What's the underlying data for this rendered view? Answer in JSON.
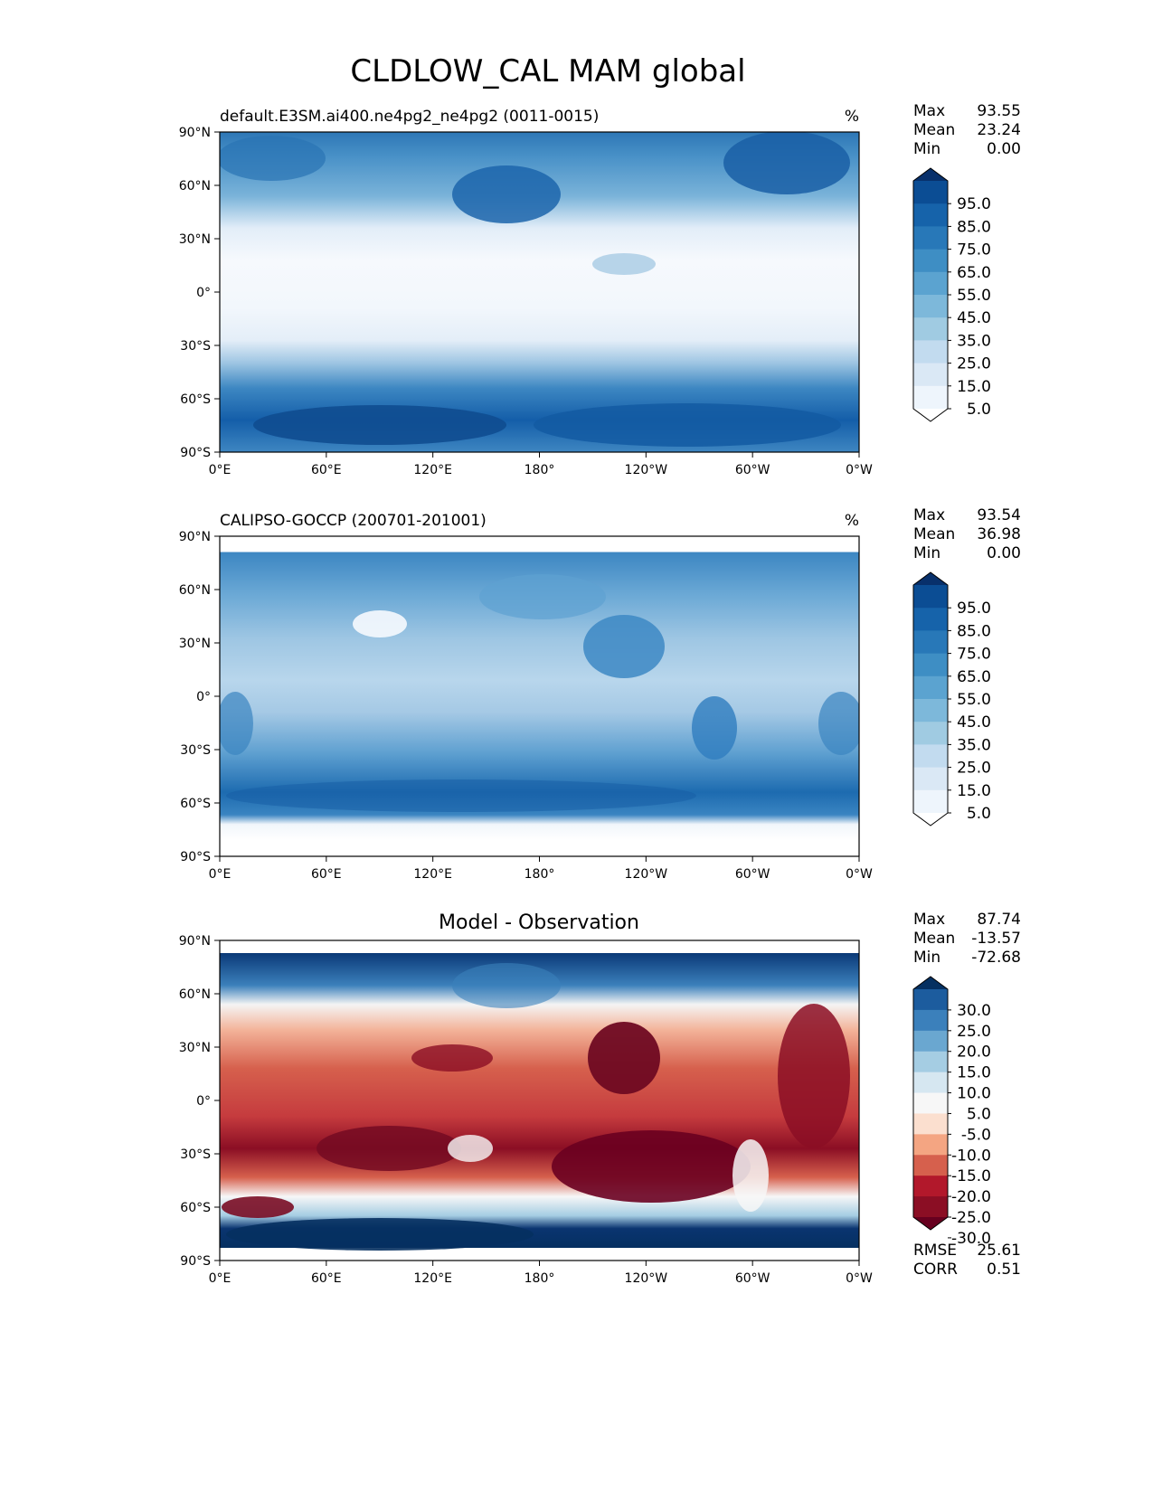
{
  "figure": {
    "title": "CLDLOW_CAL MAM global"
  },
  "axes_labels": {
    "lat": [
      "90°N",
      "60°N",
      "30°N",
      "0°",
      "30°S",
      "60°S",
      "90°S"
    ],
    "lon": [
      "0°E",
      "60°E",
      "120°E",
      "180°",
      "120°W",
      "60°W",
      "0°W"
    ]
  },
  "chart_data": [
    {
      "type": "heatmap",
      "title": "default.E3SM.ai400.ne4pg2_ne4pg2 (0011-0015)",
      "units": "%",
      "stats": [
        {
          "label": "Max",
          "value": "93.55"
        },
        {
          "label": "Mean",
          "value": "23.24"
        },
        {
          "label": "Min",
          "value": "0.00"
        }
      ],
      "colorbar": {
        "tick_labels": [
          "95.0",
          "85.0",
          "75.0",
          "65.0",
          "55.0",
          "45.0",
          "35.0",
          "25.0",
          "15.0",
          "5.0"
        ],
        "colors": [
          "#08306b",
          "#0b4d94",
          "#1663aa",
          "#2878b8",
          "#3e8ec4",
          "#5ba3d0",
          "#7db8da",
          "#a0cbe2",
          "#c2dbef",
          "#dae8f5",
          "#eef5fc",
          "#ffffff"
        ]
      },
      "xlim": [
        0,
        360
      ],
      "ylim": [
        -90,
        90
      ]
    },
    {
      "type": "heatmap",
      "title": "CALIPSO-GOCCP (200701-201001)",
      "units": "%",
      "stats": [
        {
          "label": "Max",
          "value": "93.54"
        },
        {
          "label": "Mean",
          "value": "36.98"
        },
        {
          "label": "Min",
          "value": "0.00"
        }
      ],
      "colorbar": {
        "tick_labels": [
          "95.0",
          "85.0",
          "75.0",
          "65.0",
          "55.0",
          "45.0",
          "35.0",
          "25.0",
          "15.0",
          "5.0"
        ],
        "colors": [
          "#08306b",
          "#0b4d94",
          "#1663aa",
          "#2878b8",
          "#3e8ec4",
          "#5ba3d0",
          "#7db8da",
          "#a0cbe2",
          "#c2dbef",
          "#dae8f5",
          "#eef5fc",
          "#ffffff"
        ]
      },
      "xlim": [
        0,
        360
      ],
      "ylim": [
        -90,
        90
      ]
    },
    {
      "type": "heatmap",
      "title": "Model - Observation",
      "units": "",
      "stats": [
        {
          "label": "Max",
          "value": "87.74"
        },
        {
          "label": "Mean",
          "value": "-13.57"
        },
        {
          "label": "Min",
          "value": "-72.68"
        }
      ],
      "colorbar": {
        "tick_labels": [
          "30.0",
          "25.0",
          "20.0",
          "15.0",
          "10.0",
          "5.0",
          "-5.0",
          "-10.0",
          "-15.0",
          "-20.0",
          "-25.0",
          "-30.0"
        ],
        "colors": [
          "#053061",
          "#1c5c9e",
          "#3b80bb",
          "#6aa7d0",
          "#a5cde3",
          "#d6e7f1",
          "#f7f7f7",
          "#fbdfcf",
          "#f4a582",
          "#d6604d",
          "#b2182b",
          "#8b0e24",
          "#67001f"
        ]
      },
      "metrics": [
        {
          "label": "RMSE",
          "value": "25.61"
        },
        {
          "label": "CORR",
          "value": "0.51"
        }
      ],
      "xlim": [
        0,
        360
      ],
      "ylim": [
        -90,
        90
      ]
    }
  ],
  "map_colors": {
    "seq_light": "#f3f8fd",
    "seq_mid": "#a7cbe4",
    "seq_dark": "#1a63ab",
    "diff_neg": "#c93a3f",
    "diff_neg_deep": "#6f0a22",
    "diff_neutral": "#f5f0ee",
    "diff_pos": "#0c3c78"
  }
}
